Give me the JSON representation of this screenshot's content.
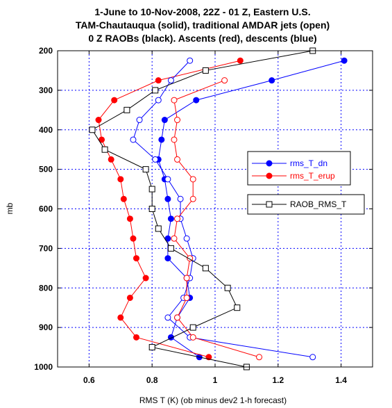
{
  "chart_data": {
    "type": "line",
    "title_lines": [
      "1-June to 10-Nov-2008, 22Z - 01 Z, Eastern U.S.",
      "TAM-Chautauqua (solid), traditional AMDAR jets (open)",
      "0 Z RAOBs (black). Ascents (red), descents (blue)"
    ],
    "xlabel": "RMS T (K) (ob minus dev2 1-h forecast)",
    "ylabel": "mb",
    "xlim": [
      0.5,
      1.5
    ],
    "ylim": [
      1000,
      200
    ],
    "x_ticks": [
      0.6,
      0.8,
      1,
      1.2,
      1.4
    ],
    "x_tick_labels": [
      "0.6",
      "0.8",
      "1",
      "1.2",
      "1.4"
    ],
    "y_ticks": [
      200,
      300,
      400,
      500,
      600,
      700,
      800,
      900,
      1000
    ],
    "y_tick_labels": [
      "200",
      "300",
      "400",
      "500",
      "600",
      "700",
      "800",
      "900",
      "1000"
    ],
    "grid": true,
    "legend_entries": [
      "rms_T_dn",
      "rms_T_erup",
      "RAOB_RMS_T"
    ],
    "legend_placement": "right",
    "series": [
      {
        "name": "rms_T_dn",
        "color": "#0000ff",
        "marker": "filled-circle",
        "points": [
          [
            1.41,
            225
          ],
          [
            1.18,
            275
          ],
          [
            0.94,
            325
          ],
          [
            0.84,
            375
          ],
          [
            0.83,
            425
          ],
          [
            0.82,
            475
          ],
          [
            0.84,
            525
          ],
          [
            0.85,
            575
          ],
          [
            0.86,
            625
          ],
          [
            0.85,
            675
          ],
          [
            0.85,
            725
          ],
          [
            0.91,
            775
          ],
          [
            0.92,
            825
          ],
          [
            0.88,
            875
          ],
          [
            0.86,
            925
          ],
          [
            0.95,
            975
          ]
        ]
      },
      {
        "name": "rms_T_erup",
        "color": "#ff0000",
        "marker": "filled-circle",
        "points": [
          [
            1.08,
            225
          ],
          [
            0.82,
            275
          ],
          [
            0.68,
            325
          ],
          [
            0.63,
            375
          ],
          [
            0.64,
            425
          ],
          [
            0.67,
            475
          ],
          [
            0.7,
            525
          ],
          [
            0.71,
            575
          ],
          [
            0.73,
            625
          ],
          [
            0.74,
            675
          ],
          [
            0.75,
            725
          ],
          [
            0.78,
            775
          ],
          [
            0.73,
            825
          ],
          [
            0.7,
            875
          ],
          [
            0.75,
            925
          ],
          [
            0.98,
            975
          ]
        ]
      },
      {
        "name": "rms_T_dn_open",
        "color": "#0000ff",
        "marker": "open-circle",
        "points": [
          [
            0.92,
            225
          ],
          [
            0.86,
            275
          ],
          [
            0.82,
            325
          ],
          [
            0.76,
            375
          ],
          [
            0.74,
            425
          ],
          [
            0.81,
            475
          ],
          [
            0.85,
            525
          ],
          [
            0.89,
            575
          ],
          [
            0.89,
            625
          ],
          [
            0.91,
            675
          ],
          [
            0.93,
            725
          ],
          [
            0.92,
            775
          ],
          [
            0.9,
            825
          ],
          [
            0.85,
            875
          ],
          [
            0.92,
            925
          ],
          [
            1.31,
            975
          ]
        ]
      },
      {
        "name": "rms_T_erup_open",
        "color": "#ff0000",
        "marker": "open-circle",
        "points": [
          [
            1.03,
            275
          ],
          [
            0.87,
            325
          ],
          [
            0.88,
            375
          ],
          [
            0.87,
            425
          ],
          [
            0.88,
            475
          ],
          [
            0.93,
            525
          ],
          [
            0.93,
            575
          ],
          [
            0.88,
            625
          ],
          [
            0.87,
            675
          ],
          [
            0.92,
            725
          ],
          [
            0.91,
            775
          ],
          [
            0.91,
            825
          ],
          [
            0.88,
            875
          ],
          [
            0.93,
            925
          ],
          [
            1.14,
            975
          ]
        ]
      },
      {
        "name": "RAOB_RMS_T",
        "color": "#000000",
        "marker": "open-square",
        "points": [
          [
            1.31,
            200
          ],
          [
            0.97,
            250
          ],
          [
            0.81,
            300
          ],
          [
            0.72,
            350
          ],
          [
            0.61,
            400
          ],
          [
            0.65,
            450
          ],
          [
            0.78,
            500
          ],
          [
            0.8,
            550
          ],
          [
            0.8,
            600
          ],
          [
            0.82,
            650
          ],
          [
            0.86,
            700
          ],
          [
            0.97,
            750
          ],
          [
            1.04,
            800
          ],
          [
            1.07,
            850
          ],
          [
            0.93,
            900
          ],
          [
            0.8,
            950
          ],
          [
            1.1,
            1000
          ]
        ]
      }
    ]
  }
}
